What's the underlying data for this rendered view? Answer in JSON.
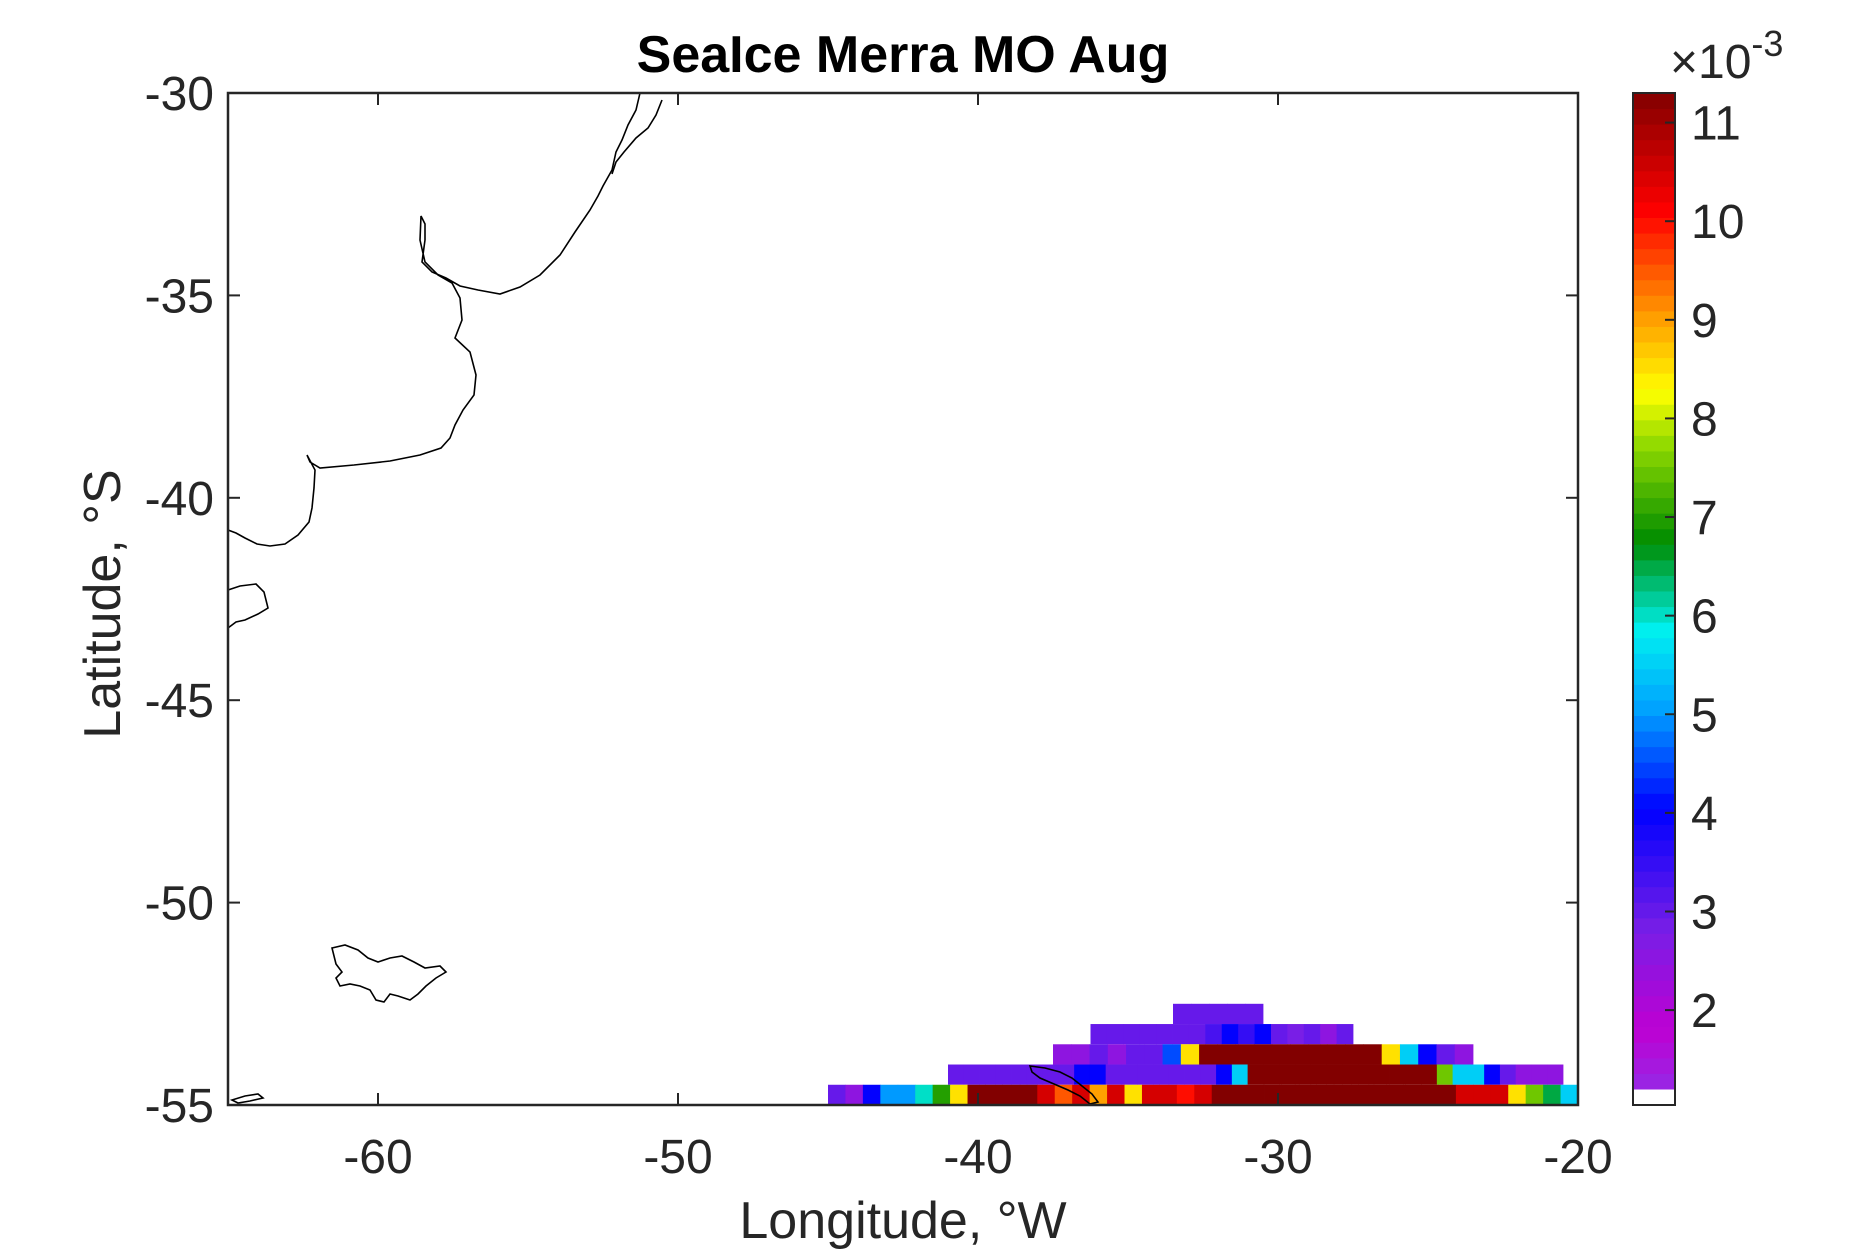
{
  "chart_data": {
    "type": "heatmap",
    "title": "SeaIce Merra MO Aug",
    "xlabel": "Longitude, °W",
    "ylabel": "Latitude, °S",
    "xlim": [
      -65,
      -20
    ],
    "ylim": [
      -55,
      -30
    ],
    "xticks": [
      -60,
      -50,
      -40,
      -30,
      -20
    ],
    "xtick_labels": [
      "-60",
      "-50",
      "-40",
      "-30",
      "-20"
    ],
    "yticks": [
      -30,
      -35,
      -40,
      -45,
      -50,
      -55
    ],
    "ytick_labels": [
      "-30",
      "-35",
      "-40",
      "-45",
      "-50",
      "-55"
    ],
    "colorbar": {
      "colormap": "jet-reversed-with-purple",
      "range": [
        0.0012,
        0.0113
      ],
      "multiplier_label": "×10",
      "multiplier_exponent": "-3",
      "ticks": [
        2,
        3,
        4,
        5,
        6,
        7,
        8,
        9,
        10,
        11
      ],
      "tick_labels": [
        "2",
        "3",
        "4",
        "5",
        "6",
        "7",
        "8",
        "9",
        "10",
        "11"
      ]
    },
    "cell_size_deg": {
      "dlon": 0.625,
      "dlat": 0.5
    },
    "cells": [
      {
        "lat": -53,
        "lon0": -33.5,
        "lon1": -30.5,
        "v": [
          3.0,
          3.0,
          3.0,
          3.0,
          3.0
        ]
      },
      {
        "lat": -53.5,
        "lon0": -36.25,
        "lon1": -27.5,
        "v": [
          3.0,
          3.0,
          3.0,
          3.0,
          3.0,
          3.0,
          3.0,
          3.3,
          4.0,
          3.5,
          4.0,
          3.0,
          2.8,
          3.0,
          2.5,
          3.0
        ]
      },
      {
        "lat": -54,
        "lon0": -37.5,
        "lon1": -23.5,
        "v": [
          2.5,
          2.5,
          3.0,
          2.5,
          3.0,
          3.0,
          4.5,
          8.5,
          11.3,
          11.3,
          11.3,
          11.3,
          11.3,
          11.3,
          11.3,
          11.3,
          11.3,
          11.3,
          8.5,
          5.5,
          4.0,
          3.0,
          2.5
        ]
      },
      {
        "lat": -54.5,
        "lon0": -41.0,
        "lon1": -20.5,
        "v": [
          3.0,
          3.0,
          3.0,
          3.0,
          3.0,
          3.0,
          3.0,
          3.0,
          4.0,
          4.0,
          3.0,
          3.0,
          3.0,
          3.0,
          3.0,
          3.0,
          3.0,
          4.0,
          5.5,
          11.3,
          11.3,
          11.3,
          11.3,
          11.3,
          11.3,
          11.3,
          11.3,
          11.3,
          11.3,
          11.3,
          11.3,
          7.5,
          5.5,
          5.5,
          4.0,
          3.0,
          2.5,
          2.5,
          2.5
        ]
      },
      {
        "lat": -55,
        "lon0": -45.0,
        "lon1": -20.0,
        "v": [
          3.0,
          2.5,
          4.0,
          5.0,
          5.0,
          6.0,
          7.0,
          8.5,
          11.3,
          11.3,
          11.3,
          11.3,
          10.5,
          9.5,
          10.5,
          9.0,
          10.5,
          8.5,
          10.5,
          10.5,
          10.0,
          10.5,
          11.3,
          11.3,
          11.3,
          11.3,
          11.3,
          11.3,
          11.3,
          11.3,
          11.3,
          11.3,
          11.3,
          11.3,
          11.3,
          11.3,
          10.5,
          10.5,
          10.5,
          8.5,
          7.5,
          6.5,
          5.5
        ]
      }
    ]
  }
}
